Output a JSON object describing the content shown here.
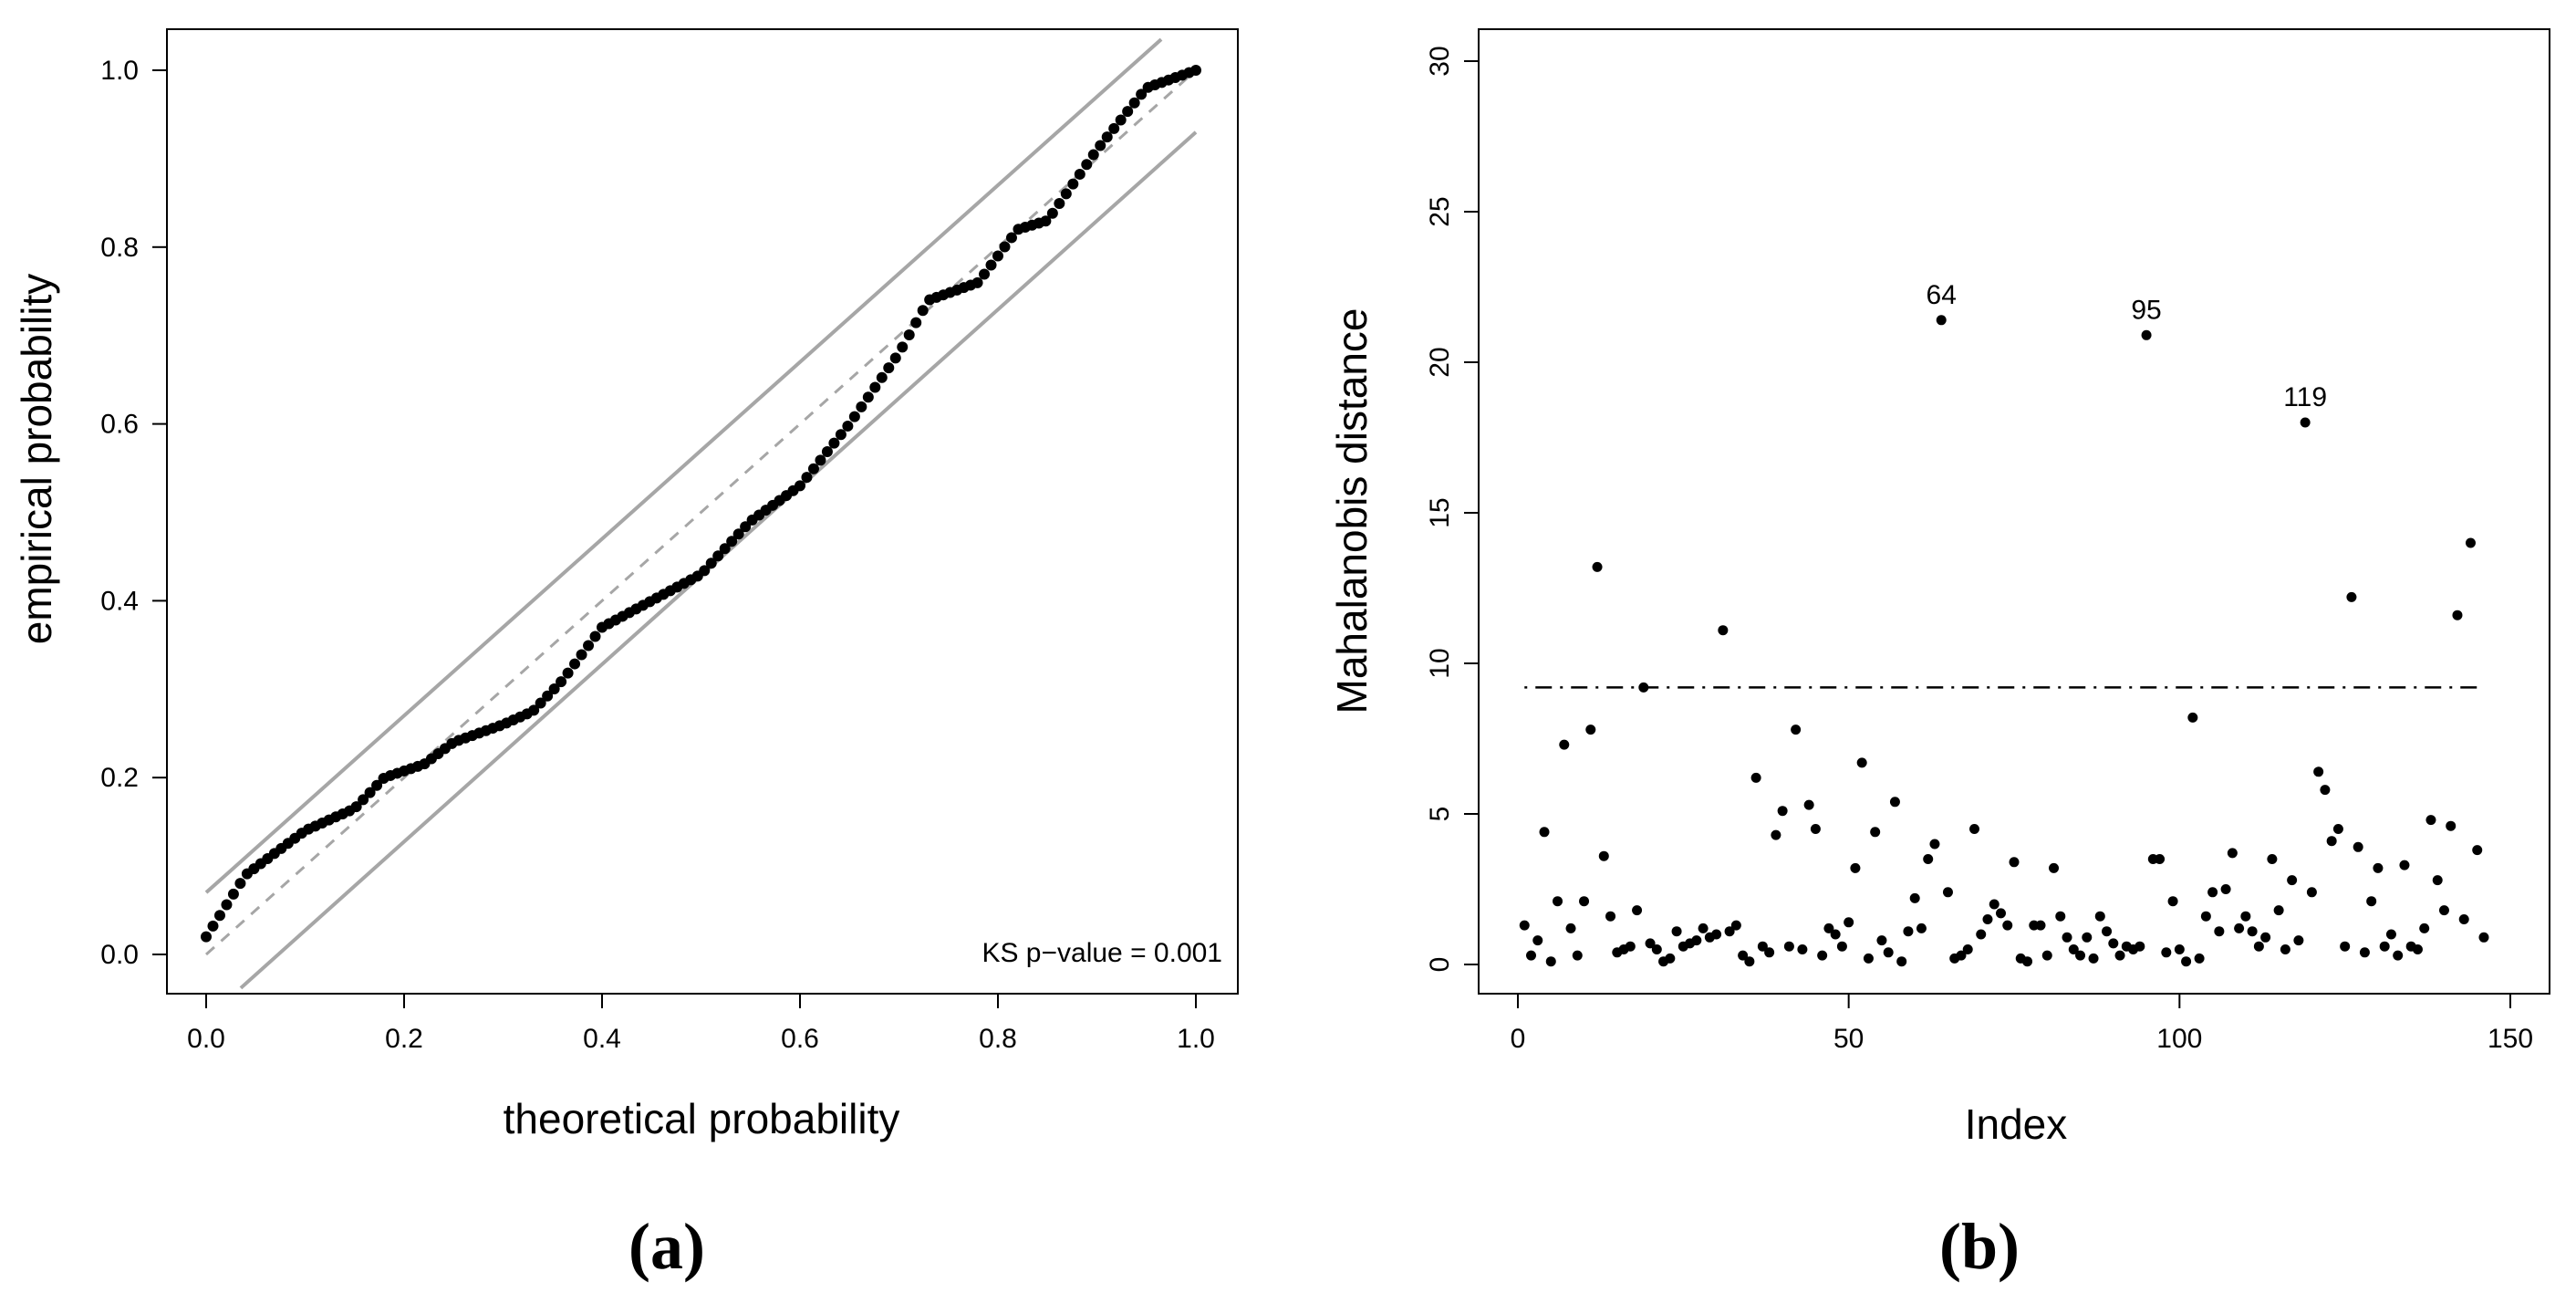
{
  "chart_data": [
    {
      "type": "scatter",
      "panel_label": "(a)",
      "xlabel": "theoretical probability",
      "ylabel": "empirical probability",
      "xlim": [
        0,
        1
      ],
      "ylim": [
        0,
        1
      ],
      "xticks": [
        "0.0",
        "0.2",
        "0.4",
        "0.6",
        "0.8",
        "1.0"
      ],
      "yticks": [
        "0.0",
        "0.2",
        "0.4",
        "0.6",
        "0.8",
        "1.0"
      ],
      "annotation": "KS p−value = 0.001",
      "reference_line": {
        "style": "dashed",
        "color": "#a6a6a6",
        "from": [
          0,
          0
        ],
        "to": [
          1,
          1
        ]
      },
      "confidence_band": {
        "style": "solid",
        "color": "#a6a6a6",
        "offset": 0.07
      },
      "points_ecdf": [
        [
          0.0,
          0.02
        ],
        [
          0.04,
          0.09
        ],
        [
          0.1,
          0.14
        ],
        [
          0.15,
          0.165
        ],
        [
          0.18,
          0.2
        ],
        [
          0.22,
          0.215
        ],
        [
          0.25,
          0.24
        ],
        [
          0.3,
          0.26
        ],
        [
          0.33,
          0.275
        ],
        [
          0.36,
          0.31
        ],
        [
          0.4,
          0.37
        ],
        [
          0.45,
          0.4
        ],
        [
          0.5,
          0.43
        ],
        [
          0.55,
          0.49
        ],
        [
          0.6,
          0.53
        ],
        [
          0.65,
          0.6
        ],
        [
          0.7,
          0.68
        ],
        [
          0.73,
          0.74
        ],
        [
          0.78,
          0.76
        ],
        [
          0.82,
          0.82
        ],
        [
          0.85,
          0.83
        ],
        [
          0.9,
          0.91
        ],
        [
          0.95,
          0.98
        ],
        [
          1.0,
          1.0
        ]
      ],
      "n_points": 146
    },
    {
      "type": "scatter",
      "panel_label": "(b)",
      "xlabel": "Index",
      "ylabel": "Mahalanobis distance",
      "xlim": [
        0,
        150
      ],
      "ylim": [
        0,
        30
      ],
      "xticks": [
        "0",
        "50",
        "100",
        "150"
      ],
      "yticks": [
        "0",
        "5",
        "10",
        "15",
        "20",
        "25",
        "30"
      ],
      "threshold": {
        "value": 9.2,
        "style": "dotdash",
        "color": "#000000"
      },
      "labeled_points": [
        {
          "label": "64",
          "x": 64,
          "y": 21.4
        },
        {
          "label": "95",
          "x": 95,
          "y": 20.9
        },
        {
          "label": "119",
          "x": 119,
          "y": 18.0
        }
      ],
      "values": [
        1.3,
        0.3,
        0.8,
        4.4,
        0.1,
        2.1,
        7.3,
        1.2,
        0.3,
        2.1,
        7.8,
        13.2,
        3.6,
        1.6,
        0.4,
        0.5,
        0.6,
        1.8,
        9.2,
        0.7,
        0.5,
        0.1,
        0.2,
        1.1,
        0.6,
        0.7,
        0.8,
        1.2,
        0.9,
        1.0,
        11.1,
        1.1,
        1.3,
        0.3,
        0.1,
        6.2,
        0.6,
        0.4,
        4.3,
        5.1,
        0.6,
        7.8,
        0.5,
        5.3,
        4.5,
        0.3,
        1.2,
        1.0,
        0.6,
        1.4,
        3.2,
        6.7,
        0.2,
        4.4,
        0.8,
        0.4,
        5.4,
        0.1,
        1.1,
        2.2,
        1.2,
        3.5,
        4.0,
        21.4,
        2.4,
        0.2,
        0.3,
        0.5,
        4.5,
        1.0,
        1.5,
        2.0,
        1.7,
        1.3,
        3.4,
        0.2,
        0.1,
        1.3,
        1.3,
        0.3,
        3.2,
        1.6,
        0.9,
        0.5,
        0.3,
        0.9,
        0.2,
        1.6,
        1.1,
        0.7,
        0.3,
        0.6,
        0.5,
        0.6,
        20.9,
        3.5,
        3.5,
        0.4,
        2.1,
        0.5,
        0.1,
        8.2,
        0.2,
        1.6,
        2.4,
        1.1,
        2.5,
        3.7,
        1.2,
        1.6,
        1.1,
        0.6,
        0.9,
        3.5,
        1.8,
        0.5,
        2.8,
        0.8,
        18.0,
        2.4,
        6.4,
        5.8,
        4.1,
        4.5,
        0.6,
        12.2,
        3.9,
        0.4,
        2.1,
        3.2,
        0.6,
        1.0,
        0.3,
        3.3,
        0.6,
        0.5,
        1.2,
        4.8,
        2.8,
        1.8,
        4.6,
        11.6,
        1.5,
        14.0,
        3.8,
        0.9
      ]
    }
  ]
}
